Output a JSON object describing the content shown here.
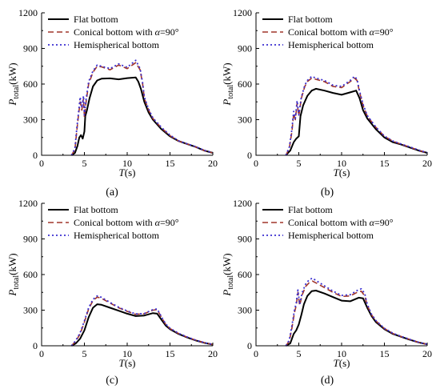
{
  "colors": {
    "flat": "#000000",
    "conical": "#a0352a",
    "hemi": "#3b2fd0"
  },
  "chart_data": [
    {
      "type": "line",
      "panel_label": "(a)",
      "xlabel": "T(s)",
      "ylabel_main": "P",
      "ylabel_sub": "total",
      "ylabel_unit": "(kW)",
      "xlim": [
        0,
        20
      ],
      "ylim": [
        0,
        1200
      ],
      "xticks": [
        "0",
        "5",
        "10",
        "15",
        "20"
      ],
      "yticks": [
        "0",
        "300",
        "600",
        "900",
        "1200"
      ],
      "legend": [
        "Flat bottom",
        "Conical bottom with α=90°",
        "Hemispherical bottom"
      ],
      "series": [
        {
          "name": "Flat bottom",
          "x": [
            3.5,
            3.9,
            4.2,
            4.4,
            4.6,
            4.8,
            5.0,
            5.1,
            5.3,
            5.6,
            6.0,
            6.5,
            7.0,
            8.0,
            9.0,
            10.0,
            11.0,
            11.3,
            11.6,
            12.0,
            12.5,
            13.0,
            14.0,
            15.0,
            16.0,
            17.0,
            18.0,
            19.0,
            20.0
          ],
          "y": [
            0,
            20,
            80,
            150,
            170,
            140,
            200,
            330,
            380,
            480,
            580,
            630,
            645,
            648,
            640,
            650,
            655,
            620,
            560,
            450,
            360,
            300,
            220,
            160,
            120,
            95,
            70,
            40,
            20
          ]
        },
        {
          "name": "Conical bottom with α=90°",
          "x": [
            3.5,
            3.9,
            4.1,
            4.3,
            4.5,
            4.7,
            4.9,
            5.0,
            5.2,
            5.5,
            6.0,
            6.5,
            7.0,
            8.0,
            9.0,
            10.0,
            11.0,
            11.5,
            11.8,
            12.0,
            12.5,
            13.0,
            14.0,
            15.0,
            16.0,
            17.0,
            18.0,
            19.0,
            20.0
          ],
          "y": [
            0,
            50,
            200,
            330,
            450,
            380,
            480,
            320,
            450,
            600,
            700,
            750,
            745,
            720,
            760,
            730,
            780,
            720,
            600,
            480,
            380,
            310,
            230,
            165,
            120,
            95,
            70,
            40,
            20
          ]
        },
        {
          "name": "Hemispherical bottom",
          "x": [
            3.5,
            3.9,
            4.1,
            4.3,
            4.5,
            4.7,
            4.9,
            5.0,
            5.2,
            5.5,
            6.0,
            6.5,
            7.0,
            8.0,
            9.0,
            10.0,
            11.0,
            11.5,
            11.8,
            12.0,
            12.5,
            13.0,
            14.0,
            15.0,
            16.0,
            17.0,
            18.0,
            19.0,
            20.0
          ],
          "y": [
            0,
            60,
            220,
            350,
            490,
            400,
            500,
            340,
            470,
            620,
            710,
            760,
            750,
            730,
            770,
            740,
            800,
            730,
            610,
            490,
            390,
            315,
            235,
            170,
            122,
            97,
            72,
            42,
            22
          ]
        }
      ]
    },
    {
      "type": "line",
      "panel_label": "(b)",
      "xlabel": "T(s)",
      "ylabel_main": "P",
      "ylabel_sub": "total",
      "ylabel_unit": "(kW)",
      "xlim": [
        0,
        20
      ],
      "ylim": [
        0,
        1200
      ],
      "xticks": [
        "0",
        "5",
        "10",
        "15",
        "20"
      ],
      "yticks": [
        "0",
        "300",
        "600",
        "900",
        "1200"
      ],
      "legend": [
        "Flat bottom",
        "Conical bottom with α=90°",
        "Hemispherical bottom"
      ],
      "series": [
        {
          "name": "Flat bottom",
          "x": [
            3.5,
            4.0,
            4.4,
            4.7,
            5.0,
            5.2,
            5.5,
            6.0,
            6.5,
            7.0,
            8.0,
            9.0,
            10.0,
            11.0,
            11.7,
            12.1,
            12.5,
            13.0,
            14.0,
            15.0,
            16.0,
            17.0,
            18.0,
            19.0,
            20.0
          ],
          "y": [
            0,
            40,
            110,
            140,
            160,
            330,
            420,
            500,
            545,
            560,
            545,
            525,
            510,
            530,
            545,
            480,
            380,
            310,
            220,
            150,
            110,
            90,
            65,
            40,
            20
          ]
        },
        {
          "name": "Conical bottom with α=90°",
          "x": [
            3.5,
            3.9,
            4.2,
            4.4,
            4.6,
            4.8,
            5.0,
            5.3,
            5.7,
            6.0,
            6.5,
            7.0,
            8.0,
            9.0,
            10.0,
            11.0,
            11.5,
            11.8,
            12.1,
            12.5,
            13.0,
            14.0,
            15.0,
            16.0,
            17.0,
            18.0,
            19.0,
            20.0
          ],
          "y": [
            0,
            60,
            200,
            350,
            300,
            440,
            330,
            480,
            580,
            620,
            650,
            640,
            620,
            580,
            570,
            620,
            650,
            630,
            530,
            420,
            330,
            235,
            160,
            118,
            92,
            68,
            42,
            20
          ]
        },
        {
          "name": "Hemispherical bottom",
          "x": [
            3.5,
            3.9,
            4.2,
            4.4,
            4.6,
            4.8,
            5.0,
            5.3,
            5.7,
            6.0,
            6.5,
            7.0,
            8.0,
            9.0,
            10.0,
            11.0,
            11.5,
            11.8,
            12.1,
            12.5,
            13.0,
            14.0,
            15.0,
            16.0,
            17.0,
            18.0,
            19.0,
            20.0
          ],
          "y": [
            0,
            70,
            220,
            370,
            310,
            460,
            340,
            490,
            590,
            630,
            665,
            650,
            630,
            590,
            580,
            630,
            665,
            640,
            540,
            430,
            335,
            238,
            162,
            120,
            94,
            70,
            44,
            22
          ]
        }
      ]
    },
    {
      "type": "line",
      "panel_label": "(c)",
      "xlabel": "T(s)",
      "ylabel_main": "P",
      "ylabel_sub": "total",
      "ylabel_unit": "(kW)",
      "xlim": [
        0,
        20
      ],
      "ylim": [
        0,
        1200
      ],
      "xticks": [
        "0",
        "5",
        "10",
        "15",
        "20"
      ],
      "yticks": [
        "0",
        "300",
        "600",
        "900",
        "1200"
      ],
      "legend": [
        "Flat bottom",
        "Conical bottom with α=90°",
        "Hemispherical bottom"
      ],
      "series": [
        {
          "name": "Flat bottom",
          "x": [
            3.5,
            4.0,
            4.5,
            5.0,
            5.5,
            6.0,
            6.5,
            7.0,
            8.0,
            9.0,
            10.0,
            11.0,
            12.0,
            13.0,
            13.5,
            14.0,
            14.5,
            15.0,
            16.0,
            17.0,
            18.0,
            19.0,
            20.0
          ],
          "y": [
            0,
            20,
            60,
            130,
            240,
            320,
            350,
            345,
            320,
            295,
            270,
            250,
            255,
            275,
            270,
            220,
            170,
            140,
            100,
            70,
            45,
            25,
            10
          ]
        },
        {
          "name": "Conical bottom with α=90°",
          "x": [
            3.5,
            4.0,
            4.5,
            5.0,
            5.5,
            6.0,
            6.5,
            7.0,
            8.0,
            9.0,
            10.0,
            11.0,
            12.0,
            13.0,
            13.5,
            14.0,
            14.5,
            15.0,
            16.0,
            17.0,
            18.0,
            19.0,
            20.0
          ],
          "y": [
            0,
            40,
            100,
            200,
            310,
            380,
            410,
            400,
            360,
            320,
            290,
            265,
            270,
            300,
            305,
            240,
            180,
            145,
            103,
            72,
            47,
            26,
            10
          ]
        },
        {
          "name": "Hemispherical bottom",
          "x": [
            3.5,
            4.0,
            4.5,
            5.0,
            5.5,
            6.0,
            6.5,
            7.0,
            8.0,
            9.0,
            10.0,
            11.0,
            12.0,
            13.0,
            13.5,
            14.0,
            14.5,
            15.0,
            16.0,
            17.0,
            18.0,
            19.0,
            20.0
          ],
          "y": [
            0,
            45,
            110,
            210,
            320,
            390,
            420,
            408,
            365,
            325,
            293,
            268,
            272,
            305,
            310,
            245,
            183,
            148,
            105,
            74,
            48,
            27,
            11
          ]
        }
      ]
    },
    {
      "type": "line",
      "panel_label": "(d)",
      "xlabel": "T(s)",
      "ylabel_main": "P",
      "ylabel_sub": "total",
      "ylabel_unit": "(kW)",
      "xlim": [
        0,
        20
      ],
      "ylim": [
        0,
        1200
      ],
      "xticks": [
        "0",
        "5",
        "10",
        "15",
        "20"
      ],
      "yticks": [
        "0",
        "300",
        "600",
        "900",
        "1200"
      ],
      "legend": [
        "Flat bottom",
        "Conical bottom with α=90°",
        "Hemispherical bottom"
      ],
      "series": [
        {
          "name": "Flat bottom",
          "x": [
            3.5,
            4.0,
            4.4,
            4.7,
            5.0,
            5.3,
            5.6,
            6.0,
            6.5,
            7.0,
            8.0,
            9.0,
            10.0,
            11.0,
            12.0,
            12.5,
            13.0,
            13.5,
            14.0,
            15.0,
            16.0,
            17.0,
            18.0,
            19.0,
            20.0
          ],
          "y": [
            0,
            20,
            100,
            130,
            180,
            260,
            350,
            420,
            460,
            465,
            440,
            410,
            380,
            375,
            405,
            400,
            320,
            250,
            200,
            140,
            100,
            75,
            50,
            28,
            12
          ]
        },
        {
          "name": "Conical bottom with α=90°",
          "x": [
            3.5,
            3.9,
            4.2,
            4.5,
            4.7,
            4.9,
            5.1,
            5.4,
            5.8,
            6.2,
            6.6,
            7.0,
            8.0,
            9.0,
            10.0,
            11.0,
            11.8,
            12.3,
            12.7,
            13.0,
            13.5,
            14.0,
            15.0,
            16.0,
            17.0,
            18.0,
            19.0,
            20.0
          ],
          "y": [
            0,
            40,
            150,
            280,
            340,
            450,
            340,
            430,
            500,
            530,
            545,
            530,
            490,
            450,
            415,
            420,
            450,
            460,
            420,
            340,
            260,
            210,
            145,
            103,
            77,
            52,
            29,
            12
          ]
        },
        {
          "name": "Hemispherical bottom",
          "x": [
            3.5,
            3.9,
            4.2,
            4.5,
            4.7,
            4.9,
            5.1,
            5.4,
            5.8,
            6.2,
            6.6,
            7.0,
            8.0,
            9.0,
            10.0,
            11.0,
            11.8,
            12.3,
            12.7,
            13.0,
            13.5,
            14.0,
            15.0,
            16.0,
            17.0,
            18.0,
            19.0,
            20.0
          ],
          "y": [
            0,
            50,
            170,
            300,
            360,
            470,
            350,
            450,
            520,
            555,
            570,
            550,
            505,
            460,
            425,
            430,
            465,
            480,
            440,
            350,
            265,
            213,
            147,
            105,
            78,
            53,
            30,
            13
          ]
        }
      ]
    }
  ]
}
